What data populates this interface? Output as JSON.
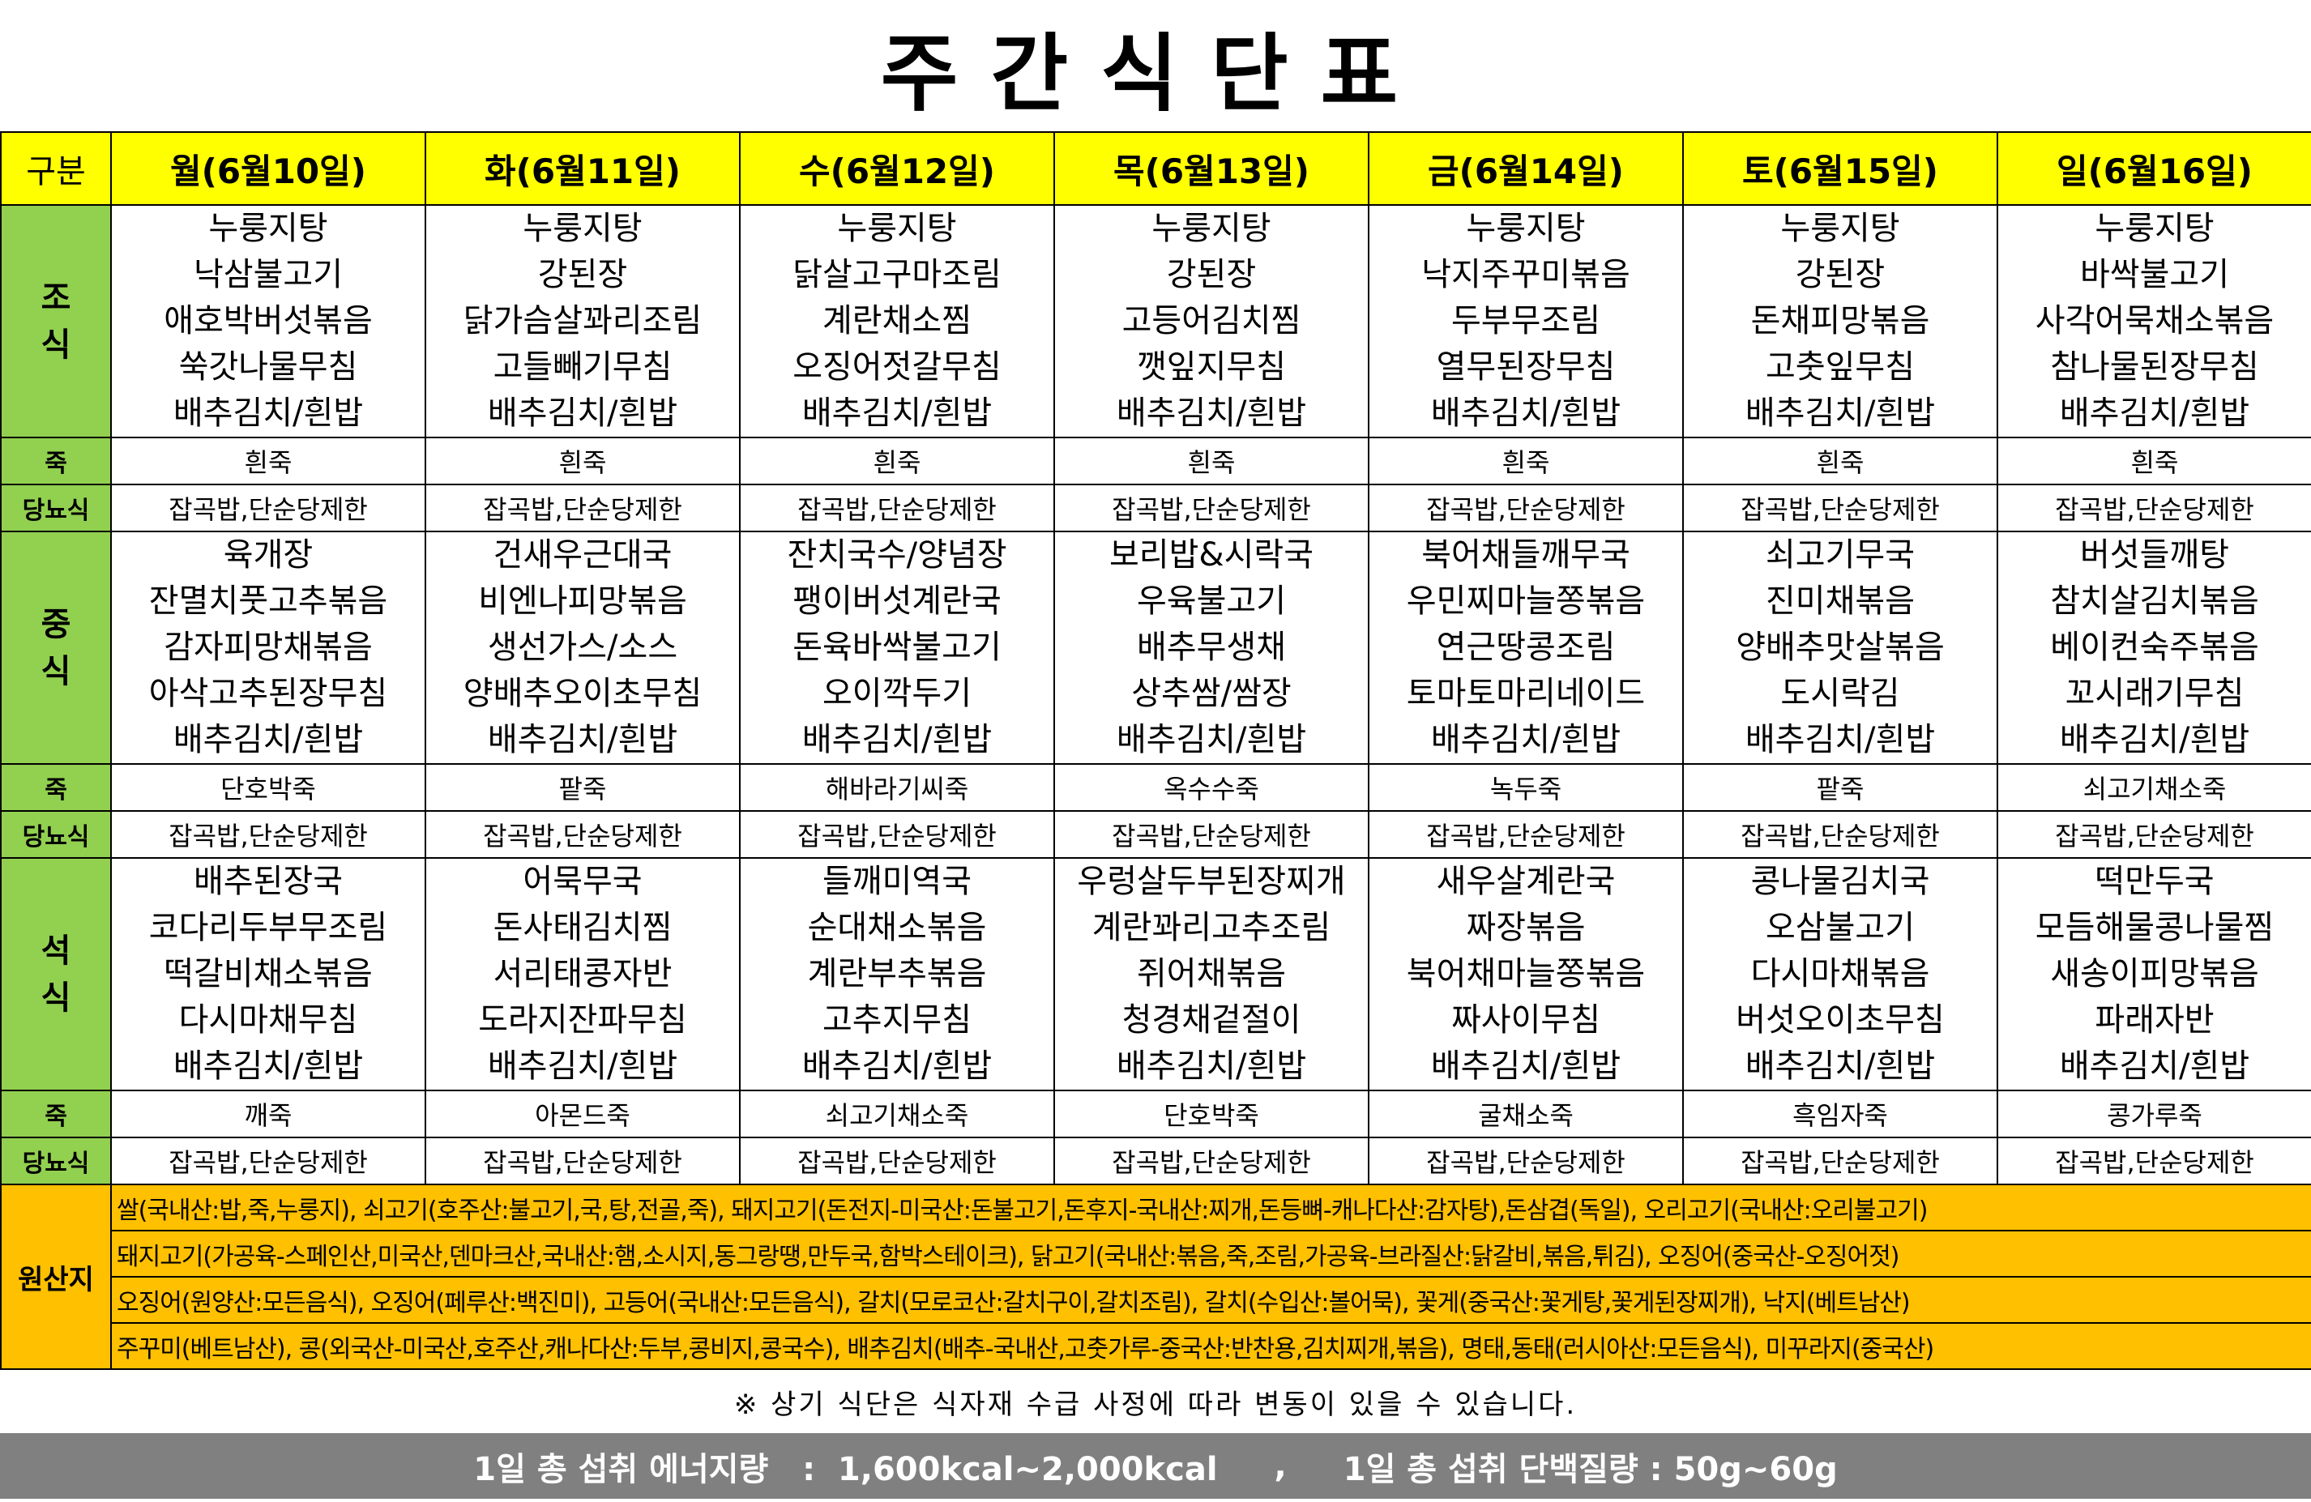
{
  "title": "주간식단표",
  "header_label": "구분",
  "labels": {
    "breakfast": "조식",
    "lunch": "중식",
    "dinner": "석식",
    "porridge": "죽",
    "diabetic": "당뇨식",
    "origin": "원산지"
  },
  "days": [
    {
      "name": "월(6월10일)",
      "breakfast": [
        "누룽지탕",
        "낙삼불고기",
        "애호박버섯볶음",
        "쑥갓나물무침",
        "배추김치/흰밥"
      ],
      "bp": "흰죽",
      "bd": "잡곡밥,단순당제한",
      "lunch": [
        "육개장",
        "잔멸치풋고추볶음",
        "감자피망채볶음",
        "아삭고추된장무침",
        "배추김치/흰밥"
      ],
      "lp": "단호박죽",
      "ld": "잡곡밥,단순당제한",
      "dinner": [
        "배추된장국",
        "코다리두부무조림",
        "떡갈비채소볶음",
        "다시마채무침",
        "배추김치/흰밥"
      ],
      "dp": "깨죽",
      "dd": "잡곡밥,단순당제한"
    },
    {
      "name": "화(6월11일)",
      "breakfast": [
        "누룽지탕",
        "강된장",
        "닭가슴살꽈리조림",
        "고들빼기무침",
        "배추김치/흰밥"
      ],
      "bp": "흰죽",
      "bd": "잡곡밥,단순당제한",
      "lunch": [
        "건새우근대국",
        "비엔나피망볶음",
        "생선가스/소스",
        "양배추오이초무침",
        "배추김치/흰밥"
      ],
      "lp": "팥죽",
      "ld": "잡곡밥,단순당제한",
      "dinner": [
        "어묵무국",
        "돈사태김치찜",
        "서리태콩자반",
        "도라지잔파무침",
        "배추김치/흰밥"
      ],
      "dp": "아몬드죽",
      "dd": "잡곡밥,단순당제한"
    },
    {
      "name": "수(6월12일)",
      "breakfast": [
        "누룽지탕",
        "닭살고구마조림",
        "계란채소찜",
        "오징어젓갈무침",
        "배추김치/흰밥"
      ],
      "bp": "흰죽",
      "bd": "잡곡밥,단순당제한",
      "lunch": [
        "잔치국수/양념장",
        "팽이버섯계란국",
        "돈육바싹불고기",
        "오이깍두기",
        "배추김치/흰밥"
      ],
      "lp": "해바라기씨죽",
      "ld": "잡곡밥,단순당제한",
      "dinner": [
        "들깨미역국",
        "순대채소볶음",
        "계란부추볶음",
        "고추지무침",
        "배추김치/흰밥"
      ],
      "dp": "쇠고기채소죽",
      "dd": "잡곡밥,단순당제한"
    },
    {
      "name": "목(6월13일)",
      "breakfast": [
        "누룽지탕",
        "강된장",
        "고등어김치찜",
        "깻잎지무침",
        "배추김치/흰밥"
      ],
      "bp": "흰죽",
      "bd": "잡곡밥,단순당제한",
      "lunch": [
        "보리밥&시락국",
        "우육불고기",
        "배추무생채",
        "상추쌈/쌈장",
        "배추김치/흰밥"
      ],
      "lp": "옥수수죽",
      "ld": "잡곡밥,단순당제한",
      "dinner": [
        "우렁살두부된장찌개",
        "계란꽈리고추조림",
        "쥐어채볶음",
        "청경채겉절이",
        "배추김치/흰밥"
      ],
      "dp": "단호박죽",
      "dd": "잡곡밥,단순당제한"
    },
    {
      "name": "금(6월14일)",
      "breakfast": [
        "누룽지탕",
        "낙지주꾸미볶음",
        "두부무조림",
        "열무된장무침",
        "배추김치/흰밥"
      ],
      "bp": "흰죽",
      "bd": "잡곡밥,단순당제한",
      "lunch": [
        "북어채들깨무국",
        "우민찌마늘쫑볶음",
        "연근땅콩조림",
        "토마토마리네이드",
        "배추김치/흰밥"
      ],
      "lp": "녹두죽",
      "ld": "잡곡밥,단순당제한",
      "dinner": [
        "새우살계란국",
        "짜장볶음",
        "북어채마늘쫑볶음",
        "짜사이무침",
        "배추김치/흰밥"
      ],
      "dp": "굴채소죽",
      "dd": "잡곡밥,단순당제한"
    },
    {
      "name": "토(6월15일)",
      "breakfast": [
        "누룽지탕",
        "강된장",
        "돈채피망볶음",
        "고춧잎무침",
        "배추김치/흰밥"
      ],
      "bp": "흰죽",
      "bd": "잡곡밥,단순당제한",
      "lunch": [
        "쇠고기무국",
        "진미채볶음",
        "양배추맛살볶음",
        "도시락김",
        "배추김치/흰밥"
      ],
      "lp": "팥죽",
      "ld": "잡곡밥,단순당제한",
      "dinner": [
        "콩나물김치국",
        "오삼불고기",
        "다시마채볶음",
        "버섯오이초무침",
        "배추김치/흰밥"
      ],
      "dp": "흑임자죽",
      "dd": "잡곡밥,단순당제한"
    },
    {
      "name": "일(6월16일)",
      "breakfast": [
        "누룽지탕",
        "바싹불고기",
        "사각어묵채소볶음",
        "참나물된장무침",
        "배추김치/흰밥"
      ],
      "bp": "흰죽",
      "bd": "잡곡밥,단순당제한",
      "lunch": [
        "버섯들깨탕",
        "참치살김치볶음",
        "베이컨숙주볶음",
        "꼬시래기무침",
        "배추김치/흰밥"
      ],
      "lp": "쇠고기채소죽",
      "ld": "잡곡밥,단순당제한",
      "dinner": [
        "떡만두국",
        "모듬해물콩나물찜",
        "새송이피망볶음",
        "파래자반",
        "배추김치/흰밥"
      ],
      "dp": "콩가루죽",
      "dd": "잡곡밥,단순당제한"
    }
  ],
  "origin_lines": [
    "쌀(국내산:밥,죽,누룽지), 쇠고기(호주산:불고기,국,탕,전골,죽), 돼지고기(돈전지-미국산:돈불고기,돈후지-국내산:찌개,돈등뼈-캐나다산:감자탕),돈삼겹(독일), 오리고기(국내산:오리불고기)",
    "돼지고기(가공육-스페인산,미국산,덴마크산,국내산:햄,소시지,동그랑땡,만두국,함박스테이크), 닭고기(국내산:볶음,죽,조림,가공육-브라질산:닭갈비,볶음,튀김), 오징어(중국산-오징어젓)",
    "오징어(원양산:모든음식), 오징어(페루산:백진미), 고등어(국내산:모든음식), 갈치(모로코산:갈치구이,갈치조림), 갈치(수입산:볼어묵), 꽃게(중국산:꽃게탕,꽃게된장찌개), 낙지(베트남산)",
    "주꾸미(베트남산), 콩(외국산-미국산,호주산,캐나다산:두부,콩비지,콩국수), 배추김치(배추-국내산,고춧가루-중국산:반찬용,김치찌개,볶음), 명태,동태(러시아산:모든음식), 미꾸라지(중국산)"
  ],
  "note": "※ 상기 식단은 식자재 수급 사정에 따라 변동이 있을 수 있습니다.",
  "footer": {
    "energy": "1일 총 섭취 에너지량   :  1,600kcal~2,000kcal",
    "separator": ",",
    "protein": "1일 총 섭취 단백질량 : 50g~60g"
  },
  "colors": {
    "header": "#ffff00",
    "label": "#92d050",
    "origin": "#ffc000",
    "footer": "#808080"
  }
}
